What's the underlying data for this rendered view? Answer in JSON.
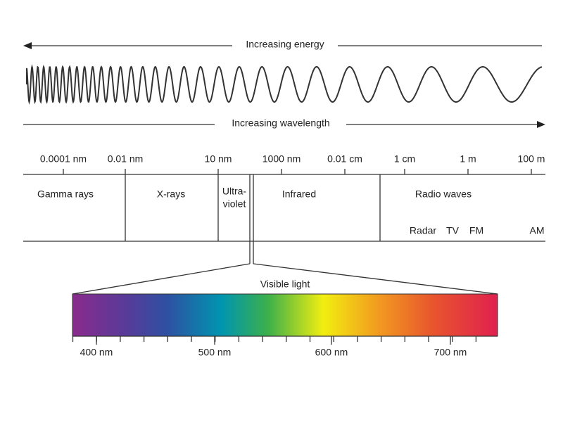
{
  "energy_label": "Increasing energy",
  "wavelength_label": "Increasing wavelength",
  "scale": [
    "0.0001 nm",
    "0.01 nm",
    "10 nm",
    "1000 nm",
    "0.01 cm",
    "1 cm",
    "1 m",
    "100 m"
  ],
  "regions": {
    "gamma": "Gamma rays",
    "xray": "X-rays",
    "uv": [
      "Ultra-",
      "violet"
    ],
    "infrared": "Infrared",
    "radio": "Radio waves"
  },
  "radio_bands": [
    "Radar",
    "TV",
    "FM",
    "AM"
  ],
  "visible": {
    "title": "Visible light",
    "scale": [
      "400 nm",
      "500 nm",
      "600 nm",
      "700 nm"
    ]
  }
}
